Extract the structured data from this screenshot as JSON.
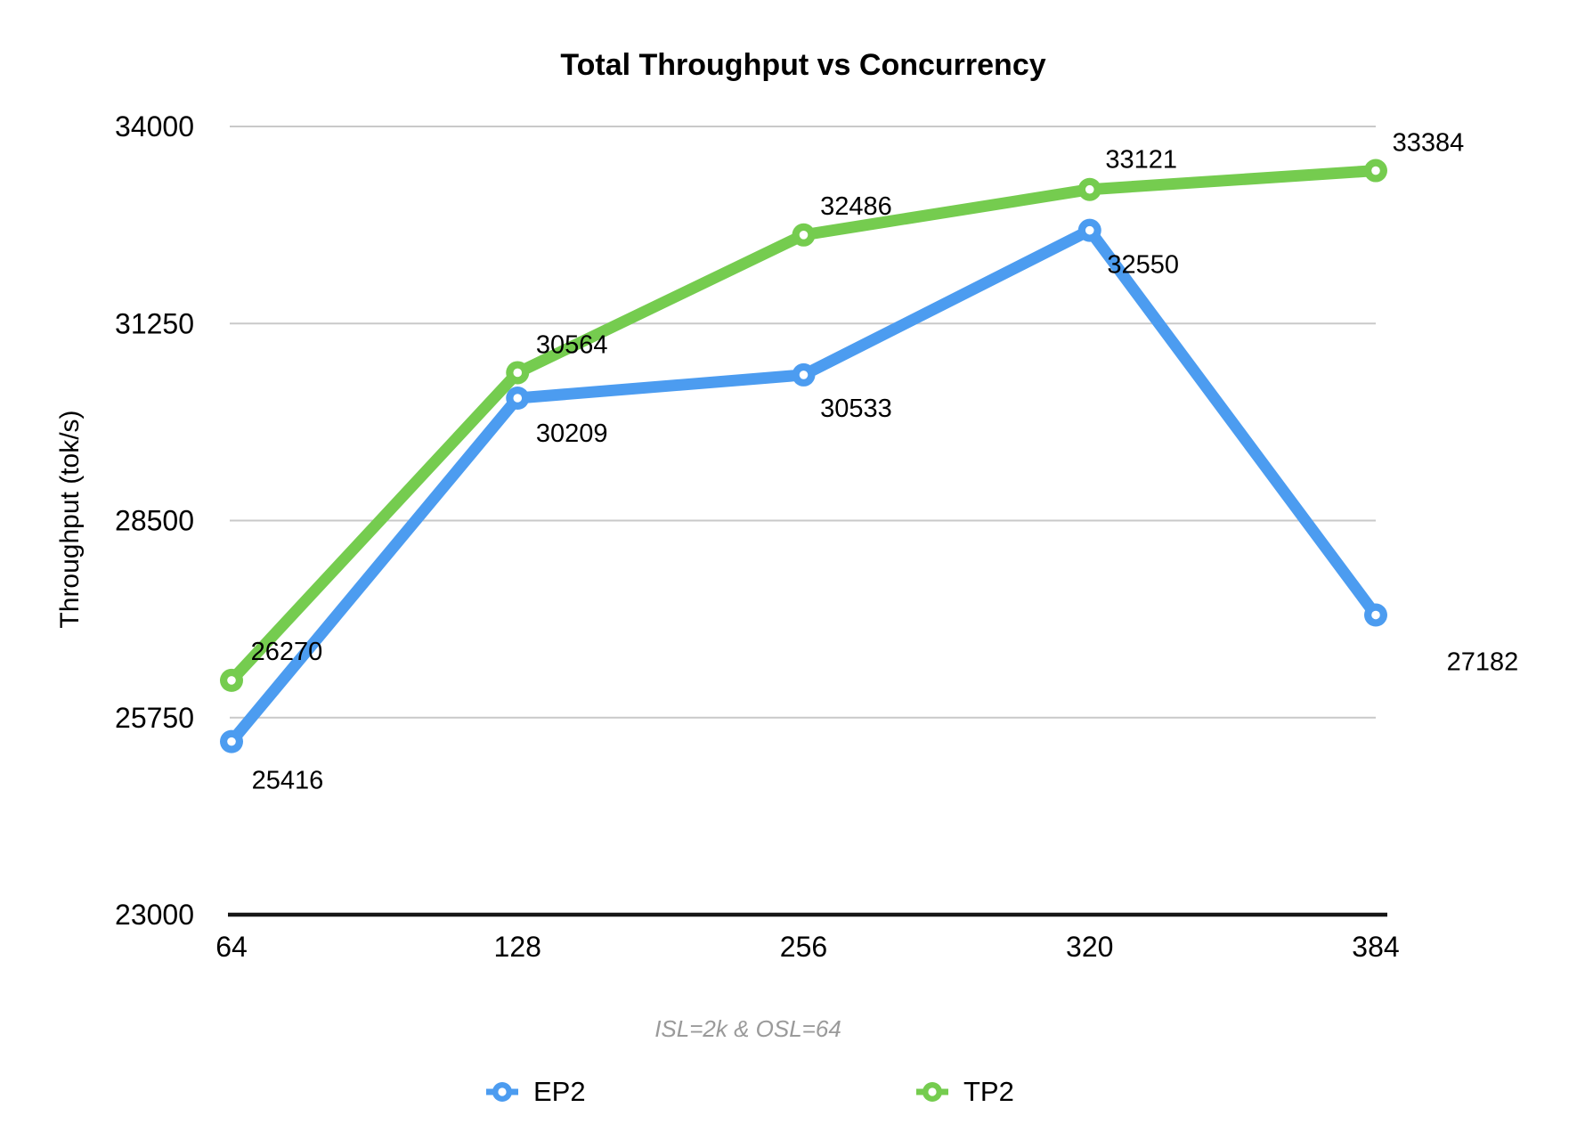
{
  "chart_data": {
    "type": "line",
    "title": "Total Throughput vs Concurrency",
    "subtitle": "ISL=2k & OSL=64",
    "xlabel": "",
    "ylabel": "Throughput (tok/s)",
    "categories": [
      "64",
      "128",
      "256",
      "320",
      "384"
    ],
    "y_ticks": [
      23000,
      25750,
      28500,
      31250,
      34000
    ],
    "ylim": [
      23000,
      34000
    ],
    "grid": true,
    "legend_position": "bottom",
    "series": [
      {
        "name": "EP2",
        "color": "#4C9CF0",
        "values": [
          25416,
          30209,
          30533,
          32550,
          27182
        ]
      },
      {
        "name": "TP2",
        "color": "#75CC4F",
        "values": [
          26270,
          30564,
          32486,
          33121,
          33384
        ]
      }
    ]
  }
}
